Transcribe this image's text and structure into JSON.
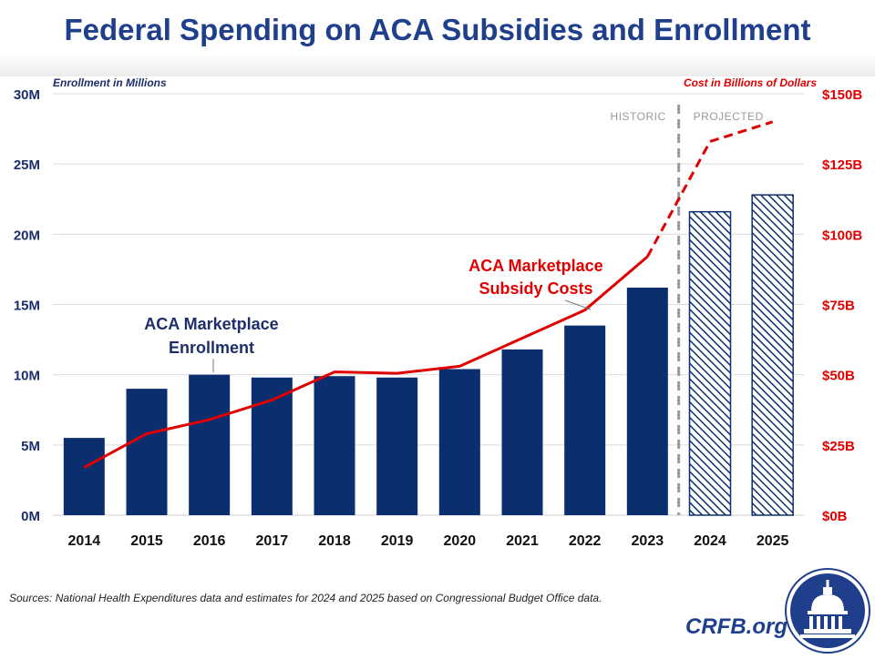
{
  "title": "Federal Spending on ACA Subsidies and Enrollment",
  "left_axis_caption": "Enrollment in Millions",
  "right_axis_caption": "Cost in Billions of Dollars",
  "source": "Sources: National Health Expenditures data and estimates for 2024 and 2025 based on Congressional Budget Office data.",
  "brand": "CRFB.org",
  "logo_icon": "capitol-dome-icon",
  "colors": {
    "title": "#1f3f8c",
    "bar": "#0b2f6e",
    "line": "#e00000",
    "divider": "#999999"
  },
  "chart_data": {
    "type": "bar",
    "categories": [
      "2014",
      "2015",
      "2016",
      "2017",
      "2018",
      "2019",
      "2020",
      "2021",
      "2022",
      "2023",
      "2024",
      "2025"
    ],
    "historic_count": 10,
    "series": [
      {
        "name": "ACA Marketplace Enrollment",
        "axis": "left",
        "type": "bar",
        "values": [
          5.5,
          9.0,
          10.0,
          9.8,
          9.9,
          9.8,
          10.4,
          11.8,
          13.5,
          16.2,
          21.6,
          22.8
        ],
        "projected_style": "hatched"
      },
      {
        "name": "ACA Marketplace Subsidy Costs",
        "axis": "right",
        "type": "line",
        "values": [
          17,
          29,
          34,
          41,
          51,
          50.5,
          53,
          63,
          73,
          92,
          133,
          140
        ],
        "projected_style": "dashed"
      }
    ],
    "left_axis": {
      "ylim": [
        0,
        30
      ],
      "ticks": [
        "0M",
        "5M",
        "10M",
        "15M",
        "20M",
        "25M",
        "30M"
      ]
    },
    "right_axis": {
      "ylim": [
        0,
        150
      ],
      "ticks": [
        "$0B",
        "$25B",
        "$50B",
        "$75B",
        "$100B",
        "$125B",
        "$150B"
      ]
    },
    "grid": true,
    "divider_labels": {
      "historic": "HISTORIC",
      "projected": "PROJECTED"
    },
    "annotations": {
      "enrollment": [
        "ACA Marketplace",
        "Enrollment"
      ],
      "costs": [
        "ACA Marketplace",
        "Subsidy Costs"
      ]
    }
  }
}
